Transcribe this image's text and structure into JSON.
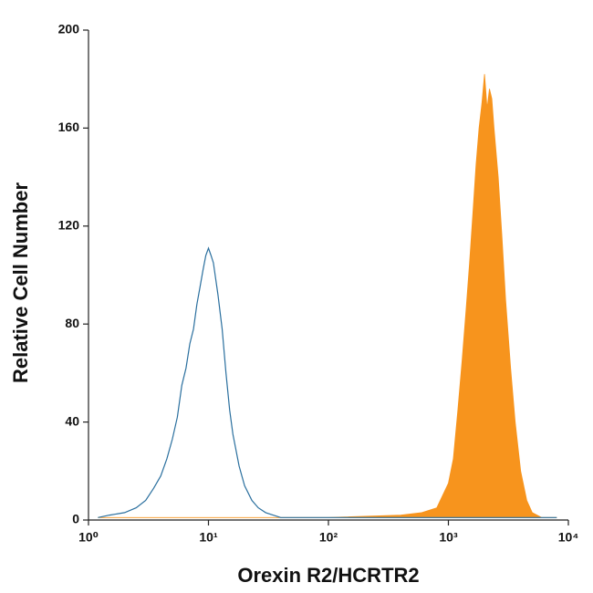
{
  "chart_data": {
    "type": "histogram-overlay",
    "xlabel": "Orexin R2/HCRTR2",
    "ylabel": "Relative Cell Number",
    "xscale": "log",
    "xlim": [
      1,
      10000
    ],
    "xticks": [
      {
        "value": 1,
        "label": "10⁰"
      },
      {
        "value": 10,
        "label": "10¹"
      },
      {
        "value": 100,
        "label": "10²"
      },
      {
        "value": 1000,
        "label": "10³"
      },
      {
        "value": 10000,
        "label": "10⁴"
      }
    ],
    "ylim": [
      0,
      200
    ],
    "yticks": [
      0,
      40,
      80,
      120,
      160,
      200
    ],
    "series": [
      {
        "color": "#f7941d",
        "fill": true,
        "x": [
          1.2,
          10,
          100,
          400,
          600,
          800,
          1000,
          1100,
          1200,
          1300,
          1400,
          1500,
          1600,
          1700,
          1800,
          1900,
          2000,
          2100,
          2200,
          2300,
          2400,
          2600,
          2800,
          3000,
          3300,
          3600,
          4000,
          4500,
          5000,
          6000,
          8000
        ],
        "values": [
          1,
          1,
          1,
          2,
          3,
          5,
          15,
          25,
          45,
          65,
          85,
          105,
          125,
          145,
          160,
          170,
          182,
          168,
          176,
          172,
          160,
          140,
          115,
          90,
          62,
          40,
          20,
          8,
          3,
          1,
          1
        ]
      },
      {
        "color": "#2a6f9e",
        "fill": false,
        "x": [
          1.2,
          1.5,
          2,
          2.5,
          3,
          3.5,
          4,
          4.5,
          5,
          5.5,
          6,
          6.5,
          7,
          7.5,
          8,
          8.5,
          9,
          9.5,
          10,
          10.5,
          11,
          12,
          13,
          14,
          15,
          16,
          18,
          20,
          23,
          26,
          30,
          40,
          60,
          100,
          300,
          1000,
          3000,
          8000
        ],
        "values": [
          1,
          2,
          3,
          5,
          8,
          13,
          18,
          25,
          33,
          42,
          55,
          62,
          72,
          78,
          88,
          95,
          102,
          108,
          111,
          108,
          105,
          92,
          78,
          60,
          45,
          35,
          22,
          14,
          8,
          5,
          3,
          1,
          1,
          1,
          1,
          1,
          1,
          1
        ]
      }
    ]
  }
}
